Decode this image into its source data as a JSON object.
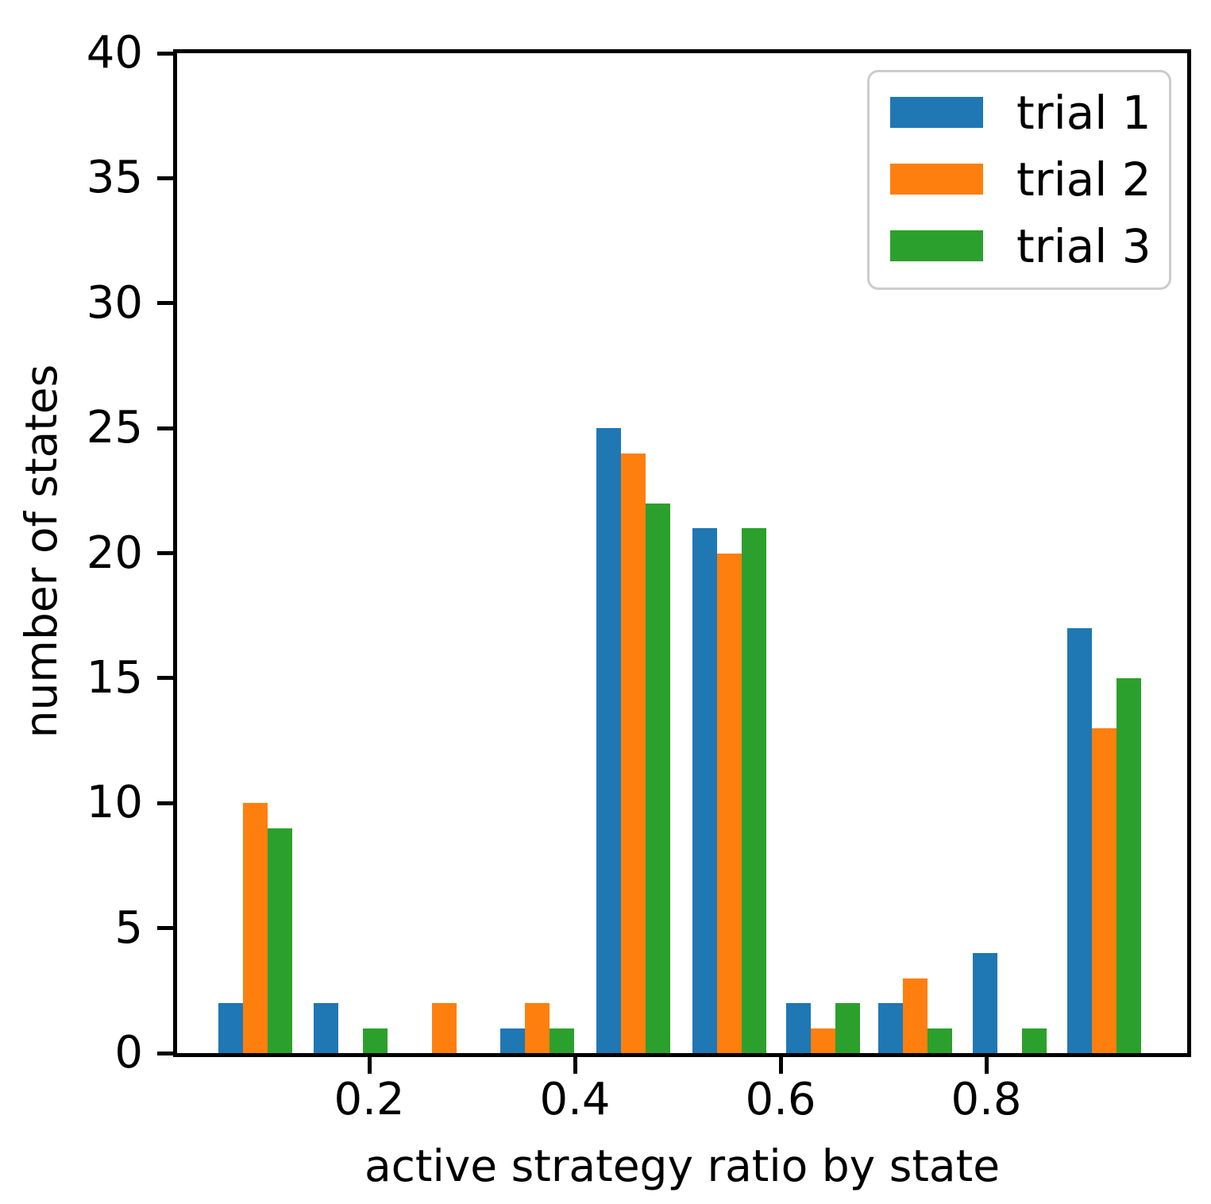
{
  "chart_data": {
    "type": "bar",
    "title": "",
    "xlabel": "active strategy ratio by state",
    "ylabel": "number of states",
    "xlim": [
      0.005,
      0.995
    ],
    "ylim": [
      0,
      40
    ],
    "grid": false,
    "legend_position": "upper right",
    "x_ticks": [
      0.2,
      0.4,
      0.6,
      0.8
    ],
    "x_tick_labels": [
      "0.2",
      "0.4",
      "0.6",
      "0.8"
    ],
    "y_ticks": [
      0,
      5,
      10,
      15,
      20,
      25,
      30,
      35,
      40
    ],
    "y_tick_labels": [
      "0",
      "5",
      "10",
      "15",
      "20",
      "25",
      "30",
      "35",
      "40"
    ],
    "bin_centers": [
      0.089,
      0.182,
      0.273,
      0.363,
      0.457,
      0.55,
      0.641,
      0.731,
      0.823,
      0.915
    ],
    "bin_width": 0.092,
    "axis_color": "#000000",
    "legend_border_color": "#cccccc",
    "series": [
      {
        "name": "trial 1",
        "color": "#1f77b4",
        "values": [
          2,
          2,
          0,
          1,
          25,
          21,
          2,
          2,
          4,
          17
        ]
      },
      {
        "name": "trial 2",
        "color": "#ff7f0e",
        "values": [
          10,
          0,
          2,
          2,
          24,
          20,
          1,
          3,
          0,
          13
        ]
      },
      {
        "name": "trial 3",
        "color": "#2ca02c",
        "values": [
          9,
          1,
          0,
          1,
          22,
          21,
          2,
          1,
          1,
          15
        ]
      }
    ]
  }
}
